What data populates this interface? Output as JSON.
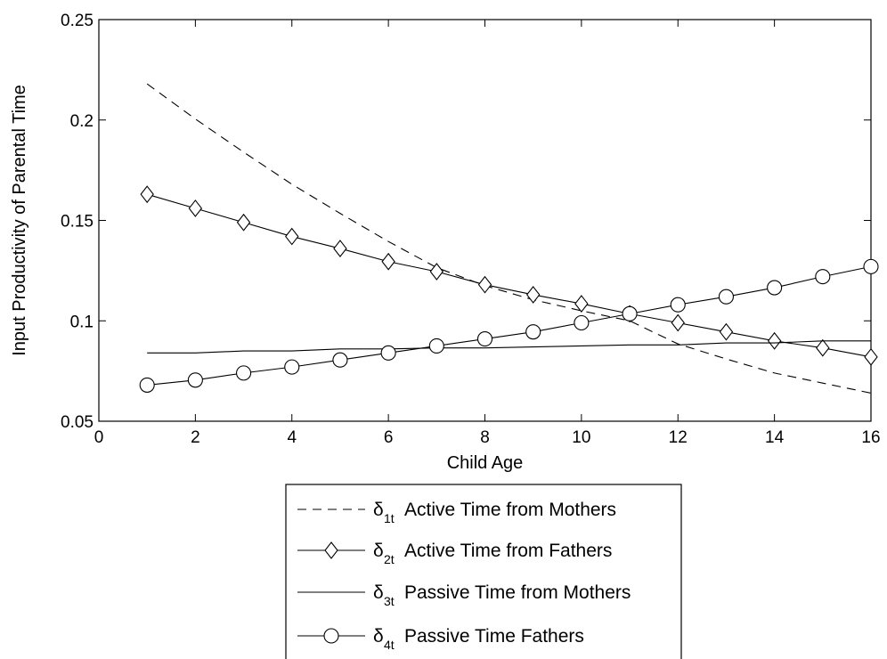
{
  "chart_data": {
    "type": "line",
    "xlabel": "Child Age",
    "ylabel": "Input Productivity of Parental Time",
    "xlim": [
      0,
      16
    ],
    "ylim": [
      0.05,
      0.25
    ],
    "xticks": [
      0,
      2,
      4,
      6,
      8,
      10,
      12,
      14,
      16
    ],
    "yticks": [
      0.05,
      0.1,
      0.15,
      0.2,
      0.25
    ],
    "xtick_labels": [
      "0",
      "2",
      "4",
      "6",
      "8",
      "10",
      "12",
      "14",
      "16"
    ],
    "ytick_labels": [
      "0.05",
      "0.1",
      "0.15",
      "0.2",
      "0.25"
    ],
    "grid": false,
    "legend_position": "below",
    "x": [
      1,
      2,
      3,
      4,
      5,
      6,
      7,
      8,
      9,
      10,
      11,
      12,
      13,
      14,
      15,
      16
    ],
    "series": [
      {
        "name": "Active Time from Mothers",
        "symbol": "δ",
        "subscript": "1t",
        "line_style": "dashed",
        "marker": "none",
        "values": [
          0.218,
          0.2005,
          0.184,
          0.168,
          0.1535,
          0.1395,
          0.1265,
          0.1175,
          0.1105,
          0.105,
          0.1,
          0.0885,
          0.081,
          0.074,
          0.069,
          0.064
        ]
      },
      {
        "name": "Active Time from Fathers",
        "symbol": "δ",
        "subscript": "2t",
        "line_style": "solid",
        "marker": "diamond",
        "values": [
          0.163,
          0.156,
          0.149,
          0.142,
          0.136,
          0.1295,
          0.1245,
          0.118,
          0.113,
          0.1085,
          0.1035,
          0.099,
          0.0945,
          0.09,
          0.0865,
          0.082
        ]
      },
      {
        "name": "Passive Time from Mothers",
        "symbol": "δ",
        "subscript": "3t",
        "line_style": "solid",
        "marker": "none",
        "values": [
          0.084,
          0.084,
          0.085,
          0.085,
          0.086,
          0.086,
          0.0865,
          0.0865,
          0.087,
          0.0875,
          0.088,
          0.088,
          0.089,
          0.089,
          0.09,
          0.09
        ]
      },
      {
        "name": "Passive Time Fathers",
        "symbol": "δ",
        "subscript": "4t",
        "line_style": "solid",
        "marker": "circle",
        "values": [
          0.068,
          0.0705,
          0.074,
          0.077,
          0.0805,
          0.084,
          0.0875,
          0.091,
          0.0945,
          0.099,
          0.1035,
          0.108,
          0.112,
          0.1165,
          0.122,
          0.127
        ]
      }
    ]
  }
}
